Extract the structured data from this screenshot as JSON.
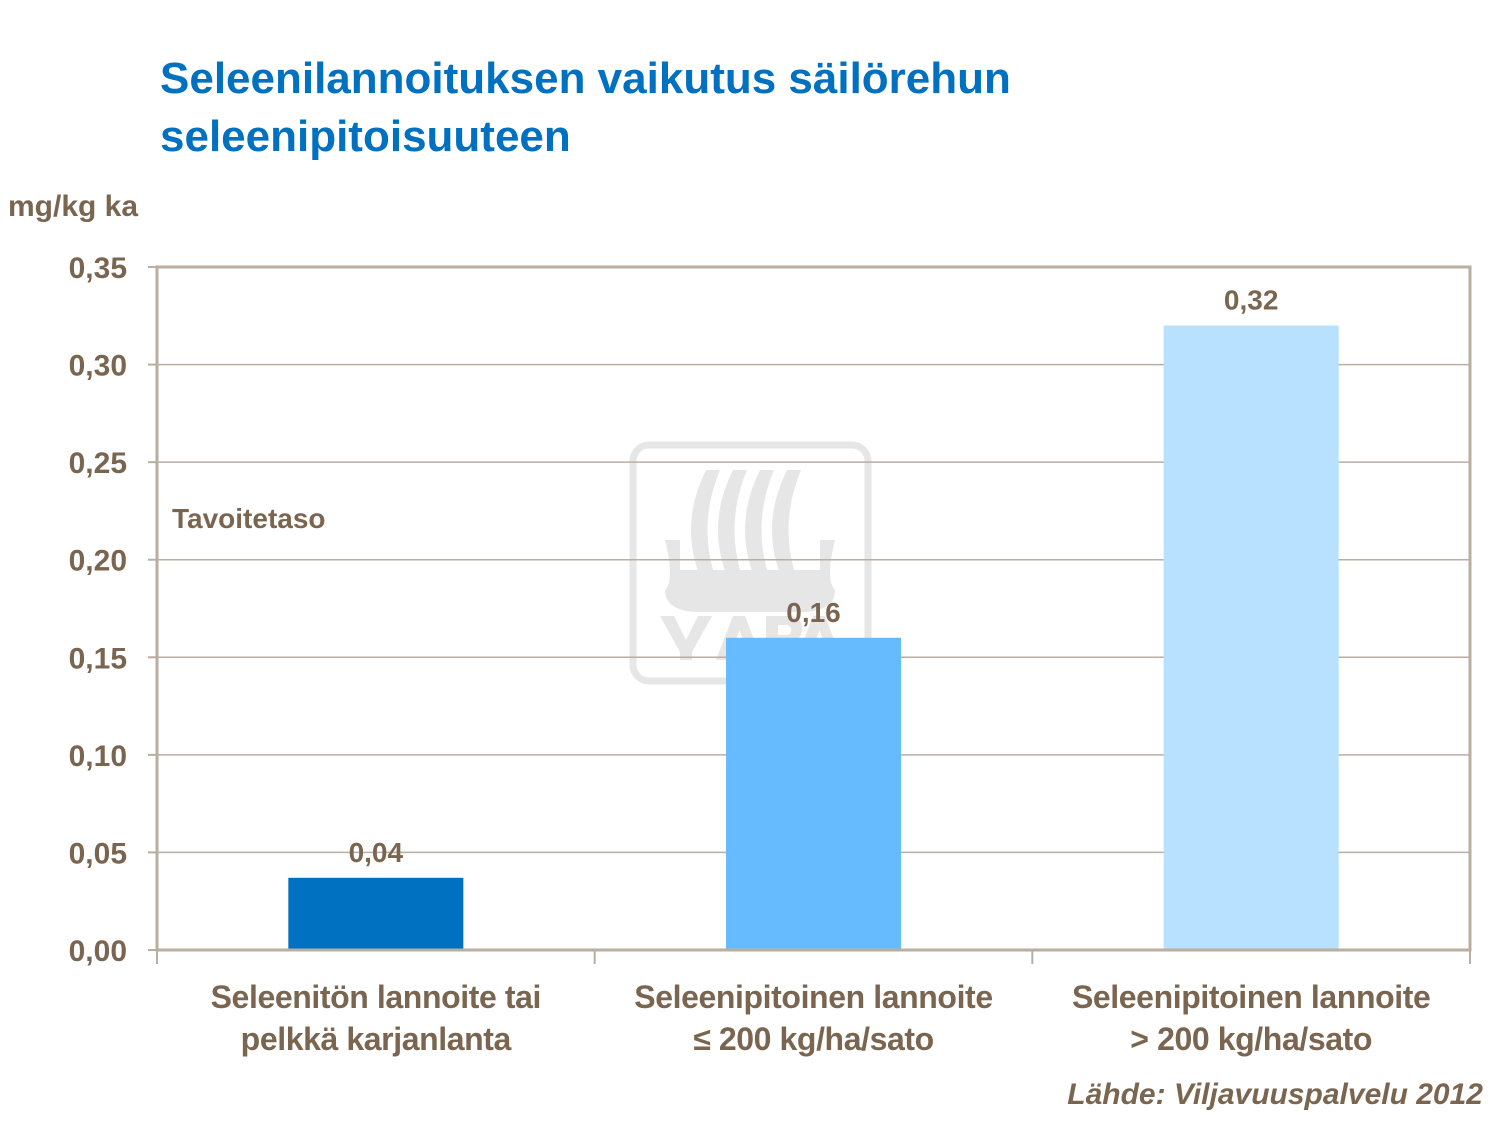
{
  "chart_data": {
    "type": "bar",
    "title": [
      "Seleenilannoituksen vaikutus säilörehun",
      "seleenipitoisuuteen"
    ],
    "ylabel": "mg/kg ka",
    "xlabel": "",
    "ylim": [
      0,
      0.35
    ],
    "yticks": [
      "0,00",
      "0,05",
      "0,10",
      "0,15",
      "0,20",
      "0,25",
      "0,30",
      "0,35"
    ],
    "grid": true,
    "categories": [
      [
        "Seleenitön lannoite tai",
        "pelkkä karjanlanta"
      ],
      [
        "Seleenipitoinen lannoite",
        "≤ 200 kg/ha/sato"
      ],
      [
        "Seleenipitoinen lannoite",
        "> 200 kg/ha/sato"
      ]
    ],
    "values": [
      0.037,
      0.16,
      0.32
    ],
    "data_labels": [
      "0,04",
      "0,16",
      "0,32"
    ],
    "colors": [
      "#0070c0",
      "#66bbff",
      "#b8e0ff"
    ],
    "annotation": "Tavoitetaso",
    "source": "Lähde: Viljavuuspalvelu  2012",
    "watermark": "YARA"
  }
}
